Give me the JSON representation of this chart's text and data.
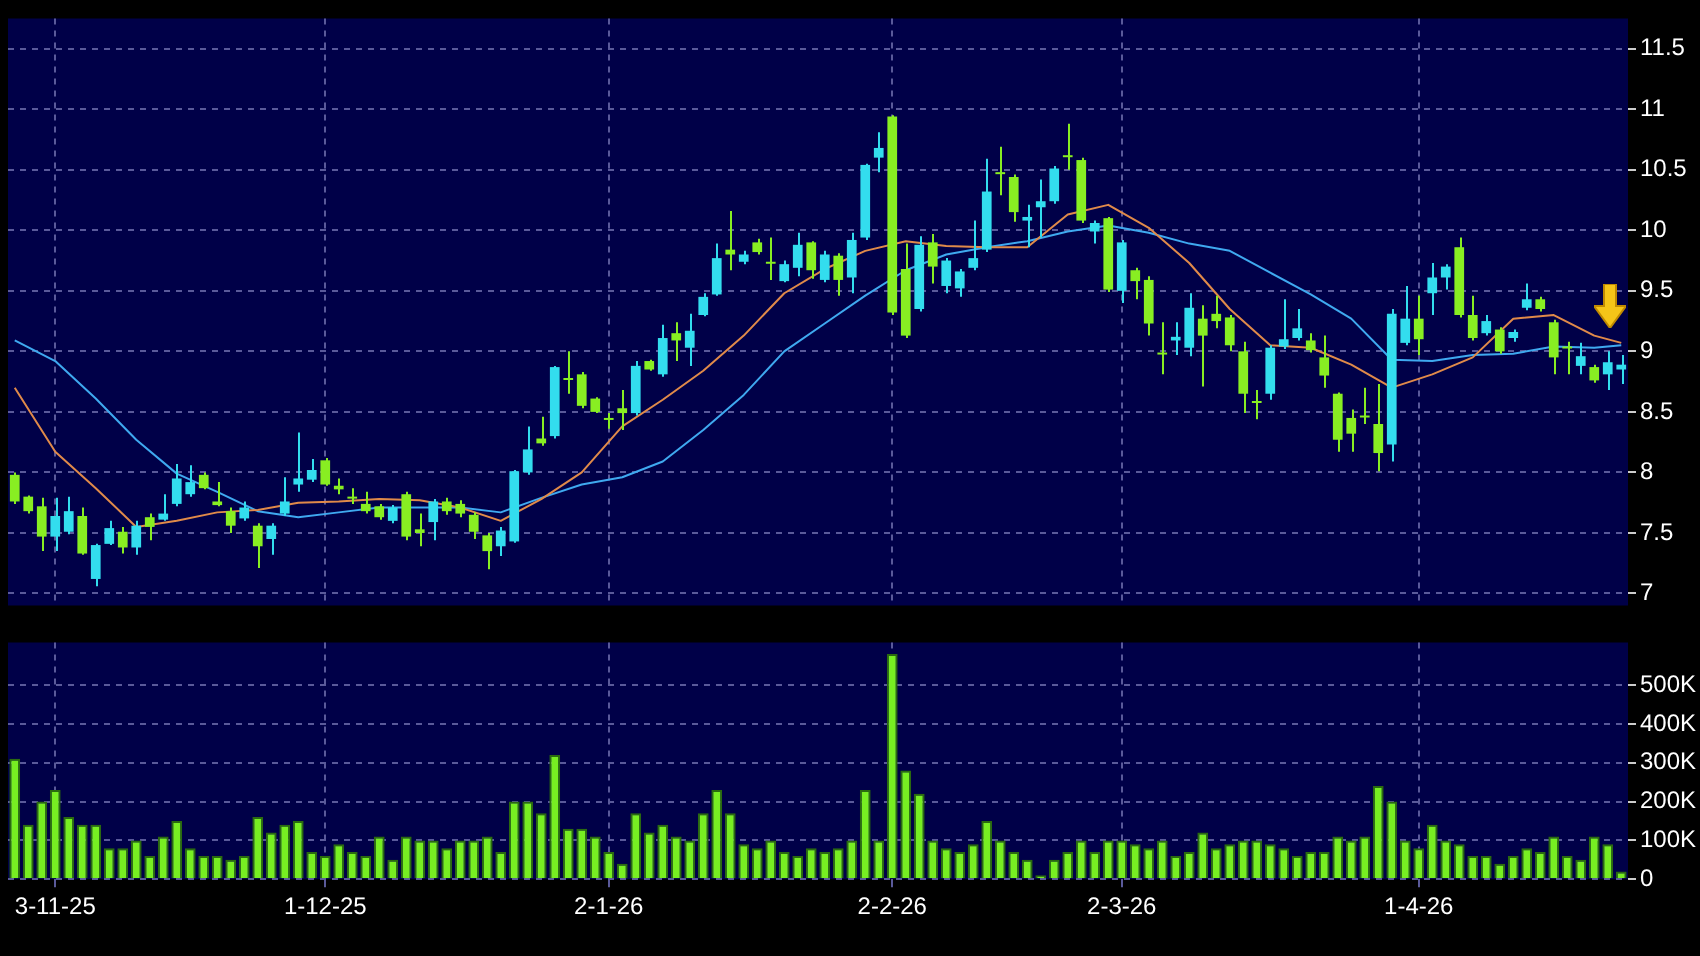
{
  "chart_data": [
    {
      "type": "candlestick",
      "categories": [
        null,
        null,
        null,
        null,
        null,
        null,
        null,
        null,
        null,
        null,
        null,
        null,
        null,
        null,
        null,
        null,
        null,
        null,
        null,
        null,
        null,
        null,
        null,
        null,
        null,
        null,
        null,
        null,
        null,
        null,
        null,
        null,
        null,
        null,
        null,
        null,
        null,
        null,
        null,
        null,
        null,
        null,
        null,
        null,
        null,
        null,
        null,
        null,
        null,
        null,
        null,
        null,
        null,
        null,
        null,
        null,
        null,
        null,
        null,
        null,
        null,
        null,
        null,
        null,
        null,
        null,
        null,
        null,
        null,
        null,
        null,
        null,
        null,
        null,
        null,
        null,
        null,
        null,
        null,
        null,
        null,
        null,
        null,
        null,
        null,
        null,
        null,
        null,
        null,
        null,
        null,
        null,
        null,
        null,
        null,
        null,
        null,
        null,
        null,
        null,
        null,
        null,
        null,
        null,
        null,
        null,
        null,
        null,
        null,
        null,
        null,
        null,
        null,
        null,
        null,
        null,
        null,
        null,
        null,
        null
      ],
      "ohlc": [
        [
          7.98,
          8.0,
          7.74,
          7.76
        ],
        [
          7.8,
          7.81,
          7.66,
          7.68
        ],
        [
          7.72,
          7.79,
          7.35,
          7.47
        ],
        [
          7.47,
          7.79,
          7.35,
          7.64
        ],
        [
          7.51,
          7.8,
          7.49,
          7.68
        ],
        [
          7.64,
          7.71,
          7.32,
          7.33
        ],
        [
          7.12,
          7.41,
          7.06,
          7.4
        ],
        [
          7.41,
          7.6,
          7.4,
          7.54
        ],
        [
          7.51,
          7.55,
          7.33,
          7.38
        ],
        [
          7.38,
          7.6,
          7.32,
          7.56
        ],
        [
          7.63,
          7.66,
          7.44,
          7.55
        ],
        [
          7.61,
          7.82,
          7.6,
          7.66
        ],
        [
          7.74,
          8.07,
          7.72,
          7.95
        ],
        [
          7.82,
          8.06,
          7.8,
          7.92
        ],
        [
          7.98,
          8.0,
          7.86,
          7.87
        ],
        [
          7.76,
          7.92,
          7.72,
          7.73
        ],
        [
          7.68,
          7.71,
          7.5,
          7.56
        ],
        [
          7.62,
          7.76,
          7.6,
          7.71
        ],
        [
          7.56,
          7.58,
          7.21,
          7.39
        ],
        [
          7.45,
          7.58,
          7.32,
          7.56
        ],
        [
          7.66,
          7.96,
          7.64,
          7.76
        ],
        [
          7.9,
          8.33,
          7.84,
          7.95
        ],
        [
          7.94,
          8.11,
          7.92,
          8.02
        ],
        [
          8.1,
          8.12,
          7.89,
          7.9
        ],
        [
          7.89,
          7.95,
          7.82,
          7.86
        ],
        [
          7.8,
          7.87,
          7.74,
          7.79
        ],
        [
          7.74,
          7.84,
          7.66,
          7.68
        ],
        [
          7.72,
          7.74,
          7.61,
          7.63
        ],
        [
          7.6,
          7.73,
          7.58,
          7.71
        ],
        [
          7.82,
          7.84,
          7.44,
          7.47
        ],
        [
          7.53,
          7.66,
          7.39,
          7.5
        ],
        [
          7.59,
          7.78,
          7.44,
          7.76
        ],
        [
          7.76,
          7.79,
          7.65,
          7.68
        ],
        [
          7.74,
          7.77,
          7.63,
          7.66
        ],
        [
          7.65,
          7.67,
          7.45,
          7.51
        ],
        [
          7.48,
          7.5,
          7.2,
          7.35
        ],
        [
          7.39,
          7.55,
          7.31,
          7.52
        ],
        [
          7.43,
          8.02,
          7.42,
          8.01
        ],
        [
          8.0,
          8.38,
          7.98,
          8.19
        ],
        [
          8.28,
          8.46,
          8.22,
          8.24
        ],
        [
          8.3,
          8.88,
          8.28,
          8.87
        ],
        [
          8.78,
          9.0,
          8.65,
          8.77
        ],
        [
          8.81,
          8.83,
          8.53,
          8.55
        ],
        [
          8.61,
          8.62,
          8.49,
          8.5
        ],
        [
          8.45,
          8.49,
          8.36,
          8.44
        ],
        [
          8.53,
          8.68,
          8.35,
          8.49
        ],
        [
          8.49,
          8.92,
          8.47,
          8.88
        ],
        [
          8.92,
          8.93,
          8.84,
          8.85
        ],
        [
          8.81,
          9.22,
          8.79,
          9.11
        ],
        [
          9.15,
          9.24,
          8.92,
          9.09
        ],
        [
          9.03,
          9.31,
          8.88,
          9.17
        ],
        [
          9.3,
          9.48,
          9.29,
          9.45
        ],
        [
          9.47,
          9.89,
          9.46,
          9.77
        ],
        [
          9.84,
          10.16,
          9.67,
          9.8
        ],
        [
          9.74,
          9.83,
          9.72,
          9.8
        ],
        [
          9.9,
          9.93,
          9.8,
          9.82
        ],
        [
          9.74,
          9.94,
          9.59,
          9.73
        ],
        [
          9.58,
          9.75,
          9.57,
          9.72
        ],
        [
          9.69,
          9.98,
          9.62,
          9.88
        ],
        [
          9.9,
          9.91,
          9.6,
          9.67
        ],
        [
          9.59,
          9.83,
          9.57,
          9.8
        ],
        [
          9.79,
          9.81,
          9.46,
          9.59
        ],
        [
          9.61,
          9.98,
          9.48,
          9.92
        ],
        [
          9.94,
          10.55,
          9.92,
          10.54
        ],
        [
          10.6,
          10.81,
          10.48,
          10.68
        ],
        [
          10.94,
          10.95,
          9.3,
          9.32
        ],
        [
          9.68,
          9.89,
          9.11,
          9.13
        ],
        [
          9.35,
          9.95,
          9.33,
          9.88
        ],
        [
          9.9,
          9.97,
          9.56,
          9.7
        ],
        [
          9.54,
          9.77,
          9.48,
          9.75
        ],
        [
          9.52,
          9.68,
          9.45,
          9.66
        ],
        [
          9.69,
          10.08,
          9.67,
          9.77
        ],
        [
          9.84,
          10.59,
          9.82,
          10.32
        ],
        [
          10.48,
          10.69,
          10.29,
          10.47
        ],
        [
          10.44,
          10.46,
          10.07,
          10.15
        ],
        [
          10.08,
          10.21,
          9.86,
          10.11
        ],
        [
          10.19,
          10.42,
          9.94,
          10.24
        ],
        [
          10.24,
          10.53,
          10.22,
          10.51
        ],
        [
          10.62,
          10.88,
          10.5,
          10.61
        ],
        [
          10.58,
          10.6,
          10.06,
          10.08
        ],
        [
          9.99,
          10.08,
          9.89,
          10.06
        ],
        [
          10.1,
          10.11,
          9.49,
          9.51
        ],
        [
          9.5,
          9.92,
          9.4,
          9.9
        ],
        [
          9.67,
          9.69,
          9.43,
          9.58
        ],
        [
          9.59,
          9.62,
          9.13,
          9.23
        ],
        [
          8.99,
          9.24,
          8.81,
          8.98
        ],
        [
          9.09,
          9.24,
          8.97,
          9.12
        ],
        [
          9.03,
          9.48,
          8.96,
          9.36
        ],
        [
          9.27,
          9.38,
          8.71,
          9.13
        ],
        [
          9.31,
          9.46,
          9.19,
          9.25
        ],
        [
          9.28,
          9.3,
          9.0,
          9.05
        ],
        [
          9.0,
          9.08,
          8.49,
          8.65
        ],
        [
          8.59,
          8.68,
          8.44,
          8.58
        ],
        [
          8.65,
          9.05,
          8.6,
          9.03
        ],
        [
          9.04,
          9.43,
          9.02,
          9.1
        ],
        [
          9.11,
          9.35,
          9.09,
          9.19
        ],
        [
          9.09,
          9.15,
          8.99,
          9.01
        ],
        [
          8.95,
          9.13,
          8.7,
          8.8
        ],
        [
          8.65,
          8.66,
          8.17,
          8.27
        ],
        [
          8.45,
          8.52,
          8.17,
          8.32
        ],
        [
          8.47,
          8.7,
          8.4,
          8.46
        ],
        [
          8.4,
          8.73,
          8.01,
          8.16
        ],
        [
          8.23,
          9.35,
          8.09,
          9.31
        ],
        [
          9.07,
          9.54,
          9.05,
          9.27
        ],
        [
          9.27,
          9.46,
          8.97,
          9.1
        ],
        [
          9.48,
          9.73,
          9.3,
          9.61
        ],
        [
          9.61,
          9.72,
          9.51,
          9.7
        ],
        [
          9.86,
          9.94,
          9.28,
          9.3
        ],
        [
          9.3,
          9.46,
          9.09,
          9.11
        ],
        [
          9.15,
          9.3,
          9.13,
          9.25
        ],
        [
          9.18,
          9.2,
          8.98,
          9.0
        ],
        [
          9.11,
          9.18,
          9.08,
          9.16
        ],
        [
          9.36,
          9.56,
          9.34,
          9.43
        ],
        [
          9.43,
          9.45,
          9.33,
          9.35
        ],
        [
          9.24,
          9.26,
          8.81,
          8.95
        ],
        [
          9.04,
          9.08,
          8.81,
          9.03
        ],
        [
          8.88,
          9.07,
          8.81,
          8.96
        ],
        [
          8.87,
          8.89,
          8.74,
          8.76
        ],
        [
          8.81,
          9.0,
          8.68,
          8.91
        ],
        [
          8.85,
          8.97,
          8.73,
          8.89
        ]
      ],
      "series": [
        {
          "type": "line",
          "color": "#e08a4a",
          "values": [
            8.7,
            null,
            null,
            8.17,
            null,
            null,
            7.87,
            null,
            null,
            7.55,
            null,
            null,
            7.6,
            null,
            null,
            7.67,
            null,
            null,
            7.69,
            null,
            null,
            7.75,
            null,
            null,
            7.76,
            null,
            null,
            7.78,
            null,
            null,
            7.77,
            null,
            null,
            7.71,
            null,
            null,
            7.6,
            null,
            null,
            7.78,
            null,
            null,
            8.0,
            null,
            null,
            8.38,
            null,
            null,
            8.6,
            null,
            null,
            8.84,
            null,
            null,
            9.13,
            null,
            null,
            9.48,
            null,
            null,
            9.68,
            null,
            null,
            9.83,
            null,
            null,
            9.91,
            null,
            null,
            9.87,
            null,
            null,
            9.86,
            null,
            null,
            9.86,
            null,
            null,
            10.13,
            null,
            null,
            10.21,
            null,
            null,
            10.02,
            null,
            null,
            9.73,
            null,
            null,
            9.35,
            null,
            null,
            9.05,
            null,
            null,
            9.03,
            null,
            null,
            8.89,
            null,
            null,
            8.7,
            null,
            null,
            8.81,
            null,
            null,
            8.95,
            null,
            null,
            9.27,
            null,
            null,
            9.3,
            null,
            null,
            9.13,
            null,
            9.07
          ]
        },
        {
          "type": "line",
          "color": "#3fa9f0",
          "values": [
            9.09,
            null,
            null,
            8.92,
            null,
            null,
            8.61,
            null,
            null,
            8.27,
            null,
            null,
            7.99,
            null,
            null,
            7.84,
            null,
            null,
            7.68,
            null,
            null,
            7.63,
            null,
            null,
            7.67,
            null,
            null,
            7.71,
            null,
            null,
            7.71,
            null,
            null,
            7.71,
            null,
            null,
            7.67,
            null,
            null,
            7.79,
            null,
            null,
            7.9,
            null,
            null,
            7.96,
            null,
            null,
            8.09,
            null,
            null,
            8.35,
            null,
            null,
            8.64,
            null,
            null,
            9.0,
            null,
            null,
            9.23,
            null,
            null,
            9.46,
            null,
            null,
            9.67,
            null,
            null,
            9.8,
            null,
            null,
            9.86,
            null,
            null,
            9.91,
            null,
            null,
            9.99,
            null,
            null,
            10.04,
            null,
            null,
            9.98,
            null,
            null,
            9.89,
            null,
            null,
            9.83,
            null,
            null,
            9.65,
            null,
            null,
            9.47,
            null,
            null,
            9.27,
            null,
            null,
            8.93,
            null,
            null,
            8.92,
            null,
            null,
            8.97,
            null,
            null,
            8.98,
            null,
            null,
            9.04,
            null,
            null,
            9.03,
            null,
            9.05
          ]
        }
      ],
      "ylim": [
        6.9,
        11.75
      ],
      "yticks": [
        7,
        7.5,
        8,
        8.5,
        9,
        9.5,
        10,
        10.5,
        11,
        11.5
      ],
      "grid": true,
      "tick_labels": "y"
    },
    {
      "type": "bar",
      "color": "#77ee22",
      "categories": [
        null,
        null,
        null,
        "3-11-25",
        null,
        null,
        null,
        null,
        null,
        null,
        null,
        null,
        null,
        null,
        null,
        null,
        null,
        null,
        null,
        null,
        null,
        null,
        null,
        "1-12-25",
        null,
        null,
        null,
        null,
        null,
        null,
        null,
        null,
        null,
        null,
        null,
        null,
        null,
        null,
        null,
        null,
        null,
        null,
        null,
        null,
        "2-1-26",
        null,
        null,
        null,
        null,
        null,
        null,
        null,
        null,
        null,
        null,
        null,
        null,
        null,
        null,
        null,
        null,
        null,
        null,
        null,
        null,
        "2-2-26",
        null,
        null,
        null,
        null,
        null,
        null,
        null,
        null,
        null,
        null,
        null,
        null,
        null,
        null,
        null,
        null,
        "2-3-26",
        null,
        null,
        null,
        null,
        null,
        null,
        null,
        null,
        null,
        null,
        null,
        null,
        null,
        null,
        null,
        null,
        null,
        null,
        null,
        null,
        null,
        "1-4-26",
        null,
        null,
        null,
        null,
        null,
        null,
        null,
        null,
        null,
        null,
        null,
        null,
        null,
        null,
        null
      ],
      "values": [
        310000,
        140000,
        200000,
        230000,
        160000,
        140000,
        140000,
        80000,
        80000,
        100000,
        60000,
        110000,
        150000,
        80000,
        60000,
        60000,
        50000,
        60000,
        160000,
        120000,
        140000,
        150000,
        70000,
        60000,
        90000,
        70000,
        60000,
        110000,
        50000,
        110000,
        100000,
        100000,
        80000,
        100000,
        100000,
        110000,
        70000,
        200000,
        200000,
        170000,
        320000,
        130000,
        130000,
        110000,
        70000,
        40000,
        170000,
        120000,
        140000,
        110000,
        100000,
        170000,
        230000,
        170000,
        90000,
        80000,
        100000,
        70000,
        60000,
        80000,
        70000,
        80000,
        100000,
        230000,
        100000,
        580000,
        280000,
        220000,
        100000,
        80000,
        70000,
        90000,
        150000,
        100000,
        70000,
        50000,
        10000,
        50000,
        70000,
        100000,
        70000,
        100000,
        100000,
        90000,
        80000,
        100000,
        60000,
        70000,
        120000,
        80000,
        90000,
        100000,
        100000,
        90000,
        80000,
        60000,
        70000,
        70000,
        110000,
        100000,
        110000,
        240000,
        200000,
        100000,
        80000,
        140000,
        100000,
        90000,
        60000,
        60000,
        40000,
        60000,
        80000,
        70000,
        110000,
        60000,
        50000,
        110000,
        90000,
        20000
      ],
      "ylim": [
        0,
        610000
      ],
      "yticks": [
        {
          "value": 0,
          "label": "0"
        },
        {
          "value": 100000,
          "label": "100K"
        },
        {
          "value": 200000,
          "label": "200K"
        },
        {
          "value": 300000,
          "label": "300K"
        },
        {
          "value": 400000,
          "label": "400K"
        },
        {
          "value": 500000,
          "label": "500K"
        }
      ],
      "grid": true
    }
  ]
}
